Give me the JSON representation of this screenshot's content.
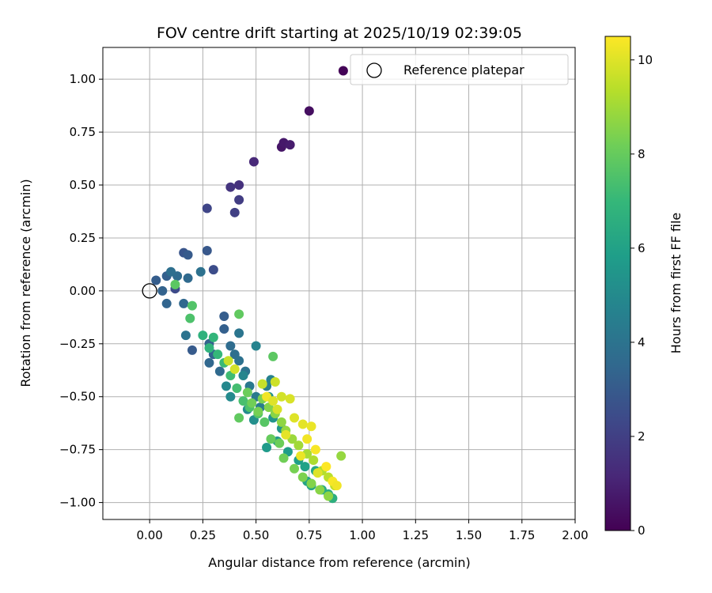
{
  "chart_data": {
    "type": "scatter",
    "title": "FOV centre drift starting at 2025/10/19 02:39:05",
    "xlabel": "Angular distance from reference (arcmin)",
    "ylabel": "Rotation from reference (arcmin)",
    "xlim": [
      -0.22,
      2.0
    ],
    "ylim": [
      -1.08,
      1.15
    ],
    "xticks": [
      "0.00",
      "0.25",
      "0.50",
      "0.75",
      "1.00",
      "1.25",
      "1.50",
      "1.75",
      "2.00"
    ],
    "yticks": [
      "1.00",
      "0.75",
      "0.50",
      "0.25",
      "0.00",
      "−0.25",
      "−0.50",
      "−0.75",
      "−1.00"
    ],
    "grid": true,
    "legend": {
      "position": "top-right",
      "entries": [
        "Reference platepar"
      ]
    },
    "reference_point": {
      "x": 0.0,
      "y": 0.0,
      "label": "Reference platepar"
    },
    "colorbar": {
      "label": "Hours from first FF file",
      "range": [
        0,
        10.5
      ],
      "ticks": [
        "0",
        "2",
        "4",
        "6",
        "8",
        "10"
      ],
      "colormap": [
        "#440154",
        "#482878",
        "#3e4989",
        "#31688e",
        "#26828e",
        "#1f9e89",
        "#35b779",
        "#6ece58",
        "#b5de2b",
        "#fde725"
      ]
    },
    "points_xyc": [
      [
        0.91,
        1.04,
        0.1
      ],
      [
        0.75,
        0.85,
        0.4
      ],
      [
        0.62,
        0.68,
        0.6
      ],
      [
        0.63,
        0.7,
        0.7
      ],
      [
        0.66,
        0.69,
        0.8
      ],
      [
        0.49,
        0.61,
        1.2
      ],
      [
        0.38,
        0.49,
        1.6
      ],
      [
        0.42,
        0.5,
        1.5
      ],
      [
        0.42,
        0.43,
        1.9
      ],
      [
        0.4,
        0.37,
        2.0
      ],
      [
        0.27,
        0.39,
        2.2
      ],
      [
        0.3,
        0.1,
        2.5
      ],
      [
        0.16,
        0.18,
        2.8
      ],
      [
        0.27,
        0.19,
        2.9
      ],
      [
        0.12,
        0.01,
        2.4
      ],
      [
        0.18,
        0.17,
        3.0
      ],
      [
        0.08,
        0.07,
        3.2
      ],
      [
        0.03,
        0.05,
        3.1
      ],
      [
        0.06,
        0.0,
        3.3
      ],
      [
        0.08,
        -0.06,
        3.4
      ],
      [
        0.16,
        -0.06,
        3.5
      ],
      [
        0.18,
        0.06,
        3.6
      ],
      [
        0.13,
        0.07,
        3.7
      ],
      [
        0.1,
        0.09,
        3.8
      ],
      [
        0.24,
        0.09,
        3.9
      ],
      [
        0.17,
        -0.21,
        4.0
      ],
      [
        0.2,
        -0.28,
        3.0
      ],
      [
        0.35,
        -0.12,
        3.1
      ],
      [
        0.35,
        -0.18,
        3.2
      ],
      [
        0.28,
        -0.25,
        3.3
      ],
      [
        0.3,
        -0.3,
        3.4
      ],
      [
        0.28,
        -0.34,
        3.5
      ],
      [
        0.33,
        -0.38,
        3.6
      ],
      [
        0.38,
        -0.26,
        3.7
      ],
      [
        0.4,
        -0.3,
        3.8
      ],
      [
        0.42,
        -0.33,
        3.9
      ],
      [
        0.45,
        -0.38,
        4.0
      ],
      [
        0.42,
        -0.2,
        4.1
      ],
      [
        0.47,
        -0.45,
        4.2
      ],
      [
        0.5,
        -0.5,
        4.3
      ],
      [
        0.52,
        -0.55,
        4.4
      ],
      [
        0.55,
        -0.45,
        4.5
      ],
      [
        0.57,
        -0.42,
        4.6
      ],
      [
        0.5,
        -0.26,
        4.7
      ],
      [
        0.44,
        -0.4,
        4.8
      ],
      [
        0.36,
        -0.45,
        4.9
      ],
      [
        0.38,
        -0.5,
        5.0
      ],
      [
        0.46,
        -0.56,
        5.1
      ],
      [
        0.49,
        -0.61,
        5.2
      ],
      [
        0.56,
        -0.5,
        5.3
      ],
      [
        0.58,
        -0.6,
        5.4
      ],
      [
        0.62,
        -0.65,
        5.5
      ],
      [
        0.6,
        -0.71,
        5.6
      ],
      [
        0.55,
        -0.74,
        5.7
      ],
      [
        0.65,
        -0.76,
        5.8
      ],
      [
        0.7,
        -0.8,
        5.9
      ],
      [
        0.73,
        -0.83,
        6.0
      ],
      [
        0.74,
        -0.9,
        6.1
      ],
      [
        0.76,
        -0.92,
        6.2
      ],
      [
        0.78,
        -0.85,
        6.3
      ],
      [
        0.81,
        -0.94,
        6.4
      ],
      [
        0.84,
        -0.96,
        6.5
      ],
      [
        0.86,
        -0.98,
        6.6
      ],
      [
        0.25,
        -0.21,
        6.7
      ],
      [
        0.28,
        -0.27,
        6.8
      ],
      [
        0.3,
        -0.22,
        6.9
      ],
      [
        0.32,
        -0.3,
        7.0
      ],
      [
        0.35,
        -0.34,
        7.1
      ],
      [
        0.38,
        -0.4,
        7.2
      ],
      [
        0.41,
        -0.46,
        7.3
      ],
      [
        0.44,
        -0.52,
        7.4
      ],
      [
        0.47,
        -0.55,
        7.5
      ],
      [
        0.51,
        -0.58,
        7.6
      ],
      [
        0.54,
        -0.62,
        7.7
      ],
      [
        0.58,
        -0.31,
        7.8
      ],
      [
        0.42,
        -0.6,
        7.9
      ],
      [
        0.57,
        -0.7,
        8.0
      ],
      [
        0.61,
        -0.72,
        8.1
      ],
      [
        0.63,
        -0.79,
        8.2
      ],
      [
        0.68,
        -0.84,
        8.3
      ],
      [
        0.72,
        -0.88,
        8.4
      ],
      [
        0.76,
        -0.91,
        8.5
      ],
      [
        0.8,
        -0.94,
        8.6
      ],
      [
        0.84,
        -0.97,
        8.7
      ],
      [
        0.19,
        -0.13,
        7.5
      ],
      [
        0.2,
        -0.07,
        7.6
      ],
      [
        0.12,
        0.03,
        7.8
      ],
      [
        0.42,
        -0.11,
        7.9
      ],
      [
        0.46,
        -0.48,
        8.1
      ],
      [
        0.48,
        -0.53,
        8.2
      ],
      [
        0.51,
        -0.57,
        8.3
      ],
      [
        0.53,
        -0.51,
        8.4
      ],
      [
        0.56,
        -0.55,
        8.5
      ],
      [
        0.59,
        -0.58,
        8.6
      ],
      [
        0.62,
        -0.62,
        8.7
      ],
      [
        0.64,
        -0.66,
        8.8
      ],
      [
        0.67,
        -0.7,
        8.9
      ],
      [
        0.7,
        -0.73,
        9.0
      ],
      [
        0.74,
        -0.77,
        9.1
      ],
      [
        0.77,
        -0.8,
        9.2
      ],
      [
        0.81,
        -0.85,
        9.3
      ],
      [
        0.84,
        -0.88,
        9.4
      ],
      [
        0.87,
        -0.92,
        9.5
      ],
      [
        0.9,
        -0.78,
        8.8
      ],
      [
        0.53,
        -0.44,
        9.6
      ],
      [
        0.59,
        -0.43,
        9.7
      ],
      [
        0.62,
        -0.5,
        9.8
      ],
      [
        0.66,
        -0.51,
        9.9
      ],
      [
        0.68,
        -0.6,
        10.0
      ],
      [
        0.72,
        -0.63,
        10.1
      ],
      [
        0.76,
        -0.64,
        10.2
      ],
      [
        0.74,
        -0.7,
        10.3
      ],
      [
        0.78,
        -0.75,
        10.4
      ],
      [
        0.83,
        -0.83,
        10.5
      ],
      [
        0.86,
        -0.9,
        10.4
      ],
      [
        0.88,
        -0.92,
        10.3
      ],
      [
        0.55,
        -0.5,
        10.3
      ],
      [
        0.58,
        -0.52,
        10.0
      ],
      [
        0.6,
        -0.56,
        9.9
      ],
      [
        0.64,
        -0.68,
        10.1
      ],
      [
        0.71,
        -0.78,
        10.2
      ],
      [
        0.79,
        -0.86,
        10.0
      ],
      [
        0.4,
        -0.37,
        9.8
      ],
      [
        0.37,
        -0.33,
        9.6
      ]
    ]
  }
}
